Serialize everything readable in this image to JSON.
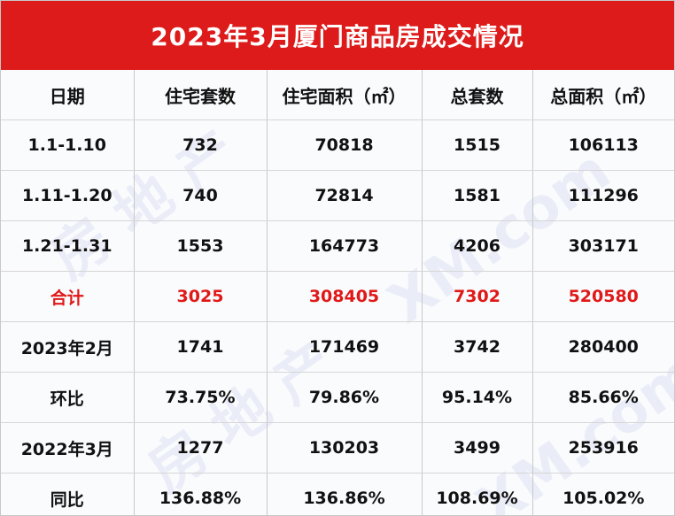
{
  "title": "2023年3月厦门商品房成交情况",
  "colors": {
    "header_bg": "#dd1b1b",
    "highlight_text": "#e01818"
  },
  "table": {
    "columns": [
      "日期",
      "住宅套数",
      "住宅面积（㎡）",
      "总套数",
      "总面积（㎡）"
    ],
    "rows": [
      {
        "cells": [
          "1.1-1.10",
          "732",
          "70818",
          "1515",
          "106113"
        ],
        "highlight": false
      },
      {
        "cells": [
          "1.11-1.20",
          "740",
          "72814",
          "1581",
          "111296"
        ],
        "highlight": false
      },
      {
        "cells": [
          "1.21-1.31",
          "1553",
          "164773",
          "4206",
          "303171"
        ],
        "highlight": false
      },
      {
        "cells": [
          "合计",
          "3025",
          "308405",
          "7302",
          "520580"
        ],
        "highlight": true
      },
      {
        "cells": [
          "2023年2月",
          "1741",
          "171469",
          "3742",
          "280400"
        ],
        "highlight": false
      },
      {
        "cells": [
          "环比",
          "73.75%",
          "79.86%",
          "95.14%",
          "85.66%"
        ],
        "highlight": false
      },
      {
        "cells": [
          "2022年3月",
          "1277",
          "130203",
          "3499",
          "253916"
        ],
        "highlight": false
      },
      {
        "cells": [
          "同比",
          "136.88%",
          "136.86%",
          "108.69%",
          "105.02%"
        ],
        "highlight": false
      }
    ]
  }
}
